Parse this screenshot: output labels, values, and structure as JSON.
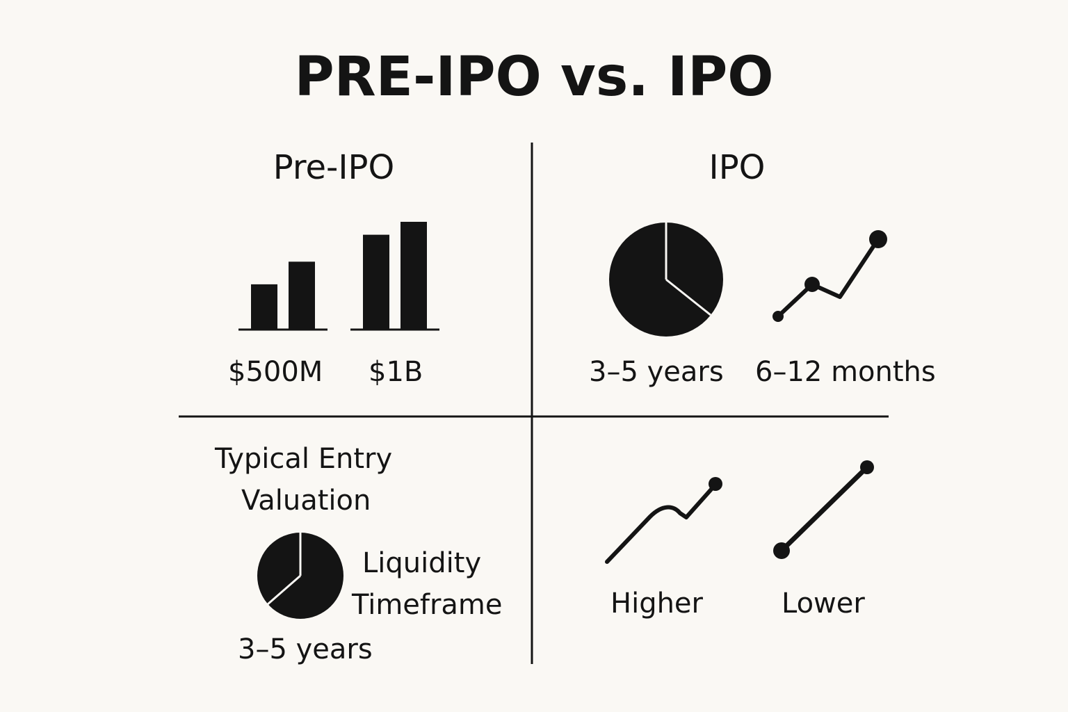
{
  "title": "PRE-IPO vs. IPO",
  "columns": {
    "left_heading": "Pre-IPO",
    "right_heading": "IPO"
  },
  "top_left": {
    "bar_labels": [
      "$500M",
      "$1B"
    ],
    "bar_groups": [
      [
        0.42,
        0.63
      ],
      [
        0.88,
        1.0
      ]
    ],
    "icon": "bar-chart-icon"
  },
  "top_right": {
    "labels": [
      "3–5 years",
      "6–12 months"
    ],
    "icons": [
      "pie-chart-icon",
      "line-chart-icon"
    ]
  },
  "bottom_left": {
    "title_line1": "Typical Entry",
    "title_line2": "Valuation",
    "side_line1": "Liquidity",
    "side_line2": "Timeframe",
    "footer": "3–5 years",
    "icon": "pie-chart-icon"
  },
  "bottom_right": {
    "labels": [
      "Higher",
      "Lower"
    ],
    "icons": [
      "rising-line-icon",
      "diagonal-line-icon"
    ]
  },
  "colors": {
    "background": "#faf8f4",
    "ink": "#141414"
  }
}
